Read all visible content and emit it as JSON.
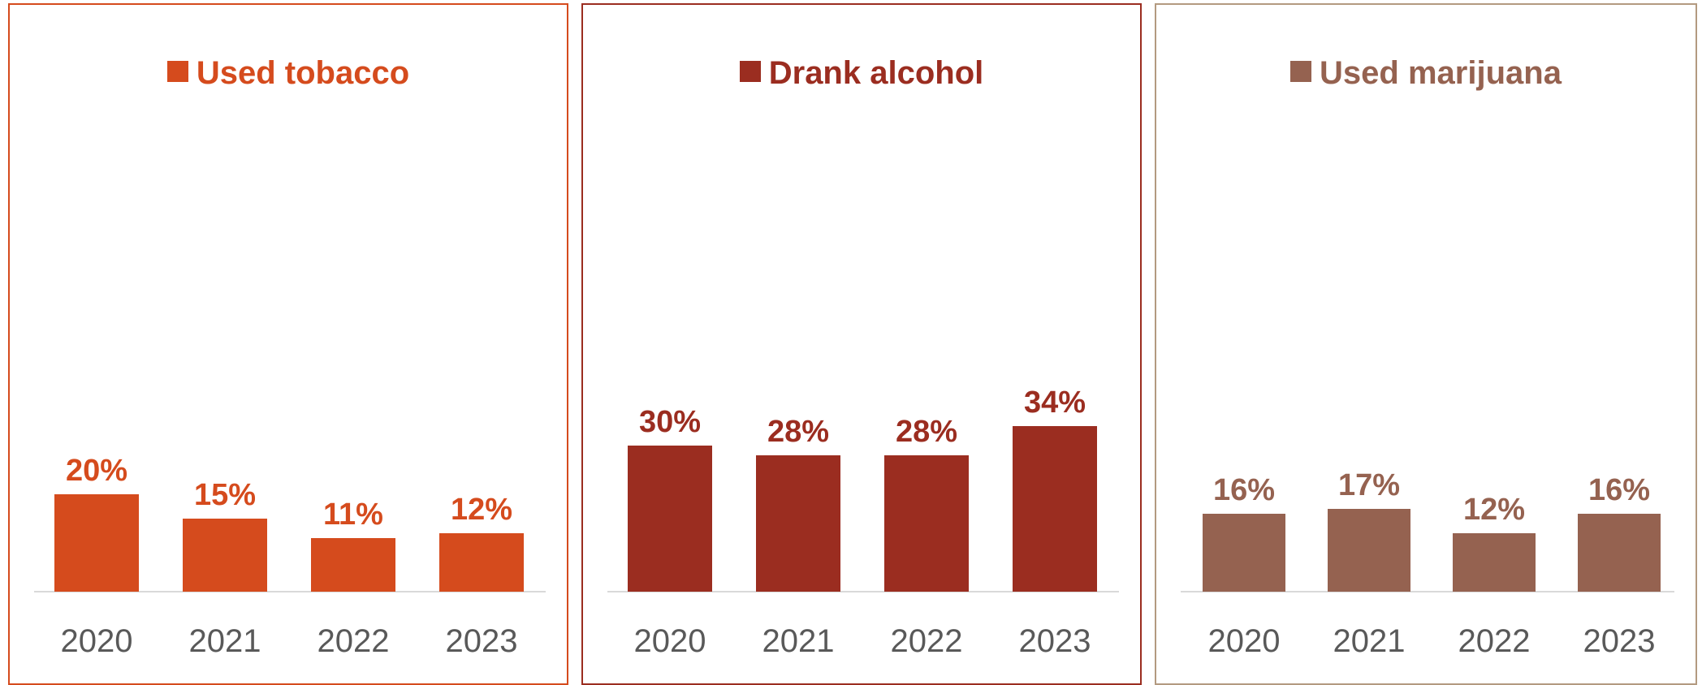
{
  "chart_data": [
    {
      "type": "bar",
      "categories": [
        "2020",
        "2021",
        "2022",
        "2023"
      ],
      "series": [
        {
          "name": "Used tobacco",
          "values": [
            20,
            15,
            11,
            12
          ]
        }
      ],
      "data_labels": [
        "20%",
        "15%",
        "11%",
        "12%"
      ],
      "color": "#D54B1D",
      "ylim": [
        0,
        60
      ],
      "legend": "top-center",
      "grid": false
    },
    {
      "type": "bar",
      "categories": [
        "2020",
        "2021",
        "2022",
        "2023"
      ],
      "series": [
        {
          "name": "Drank alcohol",
          "values": [
            30,
            28,
            28,
            34
          ]
        }
      ],
      "data_labels": [
        "30%",
        "28%",
        "28%",
        "34%"
      ],
      "color": "#9B2D20",
      "ylim": [
        0,
        60
      ],
      "legend": "top-center",
      "grid": false
    },
    {
      "type": "bar",
      "categories": [
        "2020",
        "2021",
        "2022",
        "2023"
      ],
      "series": [
        {
          "name": "Used marijuana",
          "values": [
            16,
            17,
            12,
            16
          ]
        }
      ],
      "data_labels": [
        "16%",
        "17%",
        "12%",
        "16%"
      ],
      "color": "#956250",
      "ylim": [
        0,
        60
      ],
      "legend": "top-center",
      "grid": false
    }
  ],
  "colors": {
    "tick_text": "#595959",
    "axis_line": "#D9D9D9",
    "panel_borders": [
      "#D54B1D",
      "#9B2D20",
      "#B39A80"
    ]
  }
}
